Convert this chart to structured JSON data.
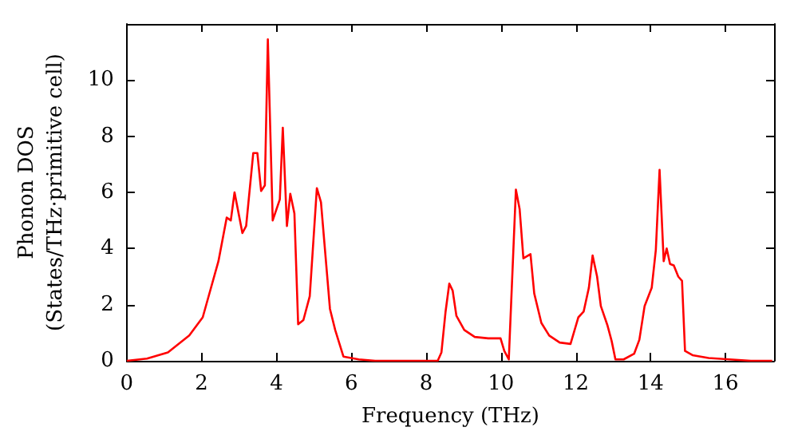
{
  "chart_data": {
    "type": "line",
    "xlabel": "Frequency (THz)",
    "ylabel": "Phonon DOS\n(States/THz·primitive cell)",
    "xlim": [
      0,
      17.3
    ],
    "xticks": [
      0,
      2,
      4,
      6,
      8,
      10,
      12,
      14,
      16
    ],
    "ylim": [
      0,
      12
    ],
    "yticks": [
      0,
      2,
      4,
      6,
      8,
      10
    ],
    "grid": false,
    "legend": false,
    "marker": "none",
    "line_style": "solid",
    "series": [
      {
        "color": "#ff0000",
        "x": [
          0,
          0.54,
          1.1,
          1.67,
          2.03,
          2.45,
          2.67,
          2.78,
          2.88,
          3.09,
          3.19,
          3.38,
          3.49,
          3.59,
          3.69,
          3.77,
          3.9,
          4.09,
          4.17,
          4.28,
          4.37,
          4.48,
          4.58,
          4.72,
          4.89,
          5.08,
          5.19,
          5.43,
          5.57,
          5.79,
          6.2,
          6.64,
          8.31,
          8.41,
          8.52,
          8.62,
          8.71,
          8.81,
          9.02,
          9.3,
          9.66,
          9.99,
          10.09,
          10.21,
          10.4,
          10.5,
          10.6,
          10.79,
          10.89,
          11.08,
          11.29,
          11.57,
          11.86,
          12.07,
          12.21,
          12.35,
          12.45,
          12.57,
          12.67,
          12.85,
          12.96,
          13.06,
          13.28,
          13.56,
          13.7,
          13.84,
          14.03,
          14.14,
          14.24,
          14.35,
          14.43,
          14.52,
          14.62,
          14.74,
          14.84,
          14.92,
          15.12,
          15.55,
          16.11,
          16.68,
          17.25
        ],
        "values": [
          0,
          0.08,
          0.3,
          0.9,
          1.55,
          3.55,
          5.1,
          5.0,
          6.0,
          4.55,
          4.8,
          7.4,
          7.4,
          6.05,
          6.25,
          11.45,
          5.0,
          5.75,
          8.3,
          4.8,
          5.95,
          5.25,
          1.3,
          1.45,
          2.3,
          6.15,
          5.65,
          1.85,
          1.1,
          0.15,
          0.05,
          0,
          0,
          0.3,
          1.75,
          2.75,
          2.5,
          1.6,
          1.1,
          0.85,
          0.8,
          0.8,
          0.35,
          0.05,
          6.1,
          5.4,
          3.65,
          3.8,
          2.4,
          1.35,
          0.9,
          0.65,
          0.6,
          1.55,
          1.75,
          2.6,
          3.75,
          3.0,
          1.95,
          1.25,
          0.7,
          0.05,
          0.05,
          0.25,
          0.75,
          1.95,
          2.6,
          3.95,
          6.8,
          3.55,
          4.0,
          3.45,
          3.4,
          3.0,
          2.85,
          0.35,
          0.2,
          0.1,
          0.05,
          0,
          0
        ]
      }
    ]
  }
}
